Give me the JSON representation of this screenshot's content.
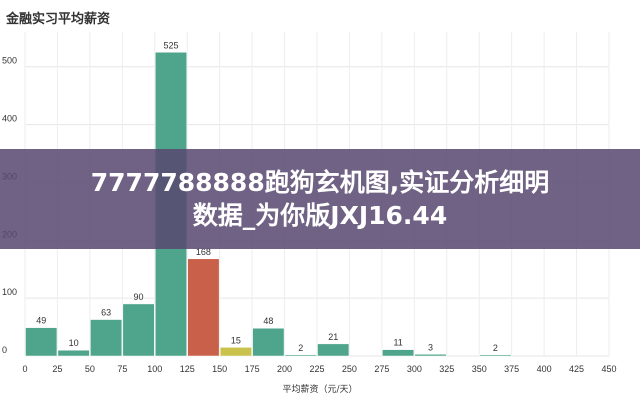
{
  "chart_data": {
    "type": "bar",
    "title": "金融实习平均薪资",
    "xlabel": "平均薪资（元/天）",
    "ylabel": "",
    "bin_width": 25,
    "bins": [
      {
        "start": 0,
        "end": 25,
        "value": 49
      },
      {
        "start": 25,
        "end": 50,
        "value": 10
      },
      {
        "start": 50,
        "end": 75,
        "value": 63
      },
      {
        "start": 75,
        "end": 100,
        "value": 90
      },
      {
        "start": 100,
        "end": 125,
        "value": 525
      },
      {
        "start": 125,
        "end": 150,
        "value": 168
      },
      {
        "start": 150,
        "end": 175,
        "value": 15
      },
      {
        "start": 175,
        "end": 200,
        "value": 48
      },
      {
        "start": 200,
        "end": 225,
        "value": 2
      },
      {
        "start": 225,
        "end": 250,
        "value": 21
      },
      {
        "start": 275,
        "end": 300,
        "value": 11
      },
      {
        "start": 300,
        "end": 325,
        "value": 3
      },
      {
        "start": 350,
        "end": 375,
        "value": 2
      }
    ],
    "x_ticks": [
      0,
      25,
      50,
      75,
      100,
      125,
      150,
      175,
      200,
      225,
      250,
      275,
      300,
      325,
      350,
      375,
      400,
      425,
      450
    ],
    "x_range": [
      0,
      450
    ],
    "y_ticks": [
      0,
      100,
      200,
      300,
      400,
      500
    ],
    "y_range": [
      0,
      560
    ],
    "grid": true,
    "colors": {
      "default": "#4ea58b",
      "125-150": "#c9604a",
      "150-175": "#c9c34e"
    }
  },
  "overlay": {
    "line1": "7777788888跑狗玄机图,实证分析细明",
    "line2": "数据_为你版JXJ16.44"
  }
}
